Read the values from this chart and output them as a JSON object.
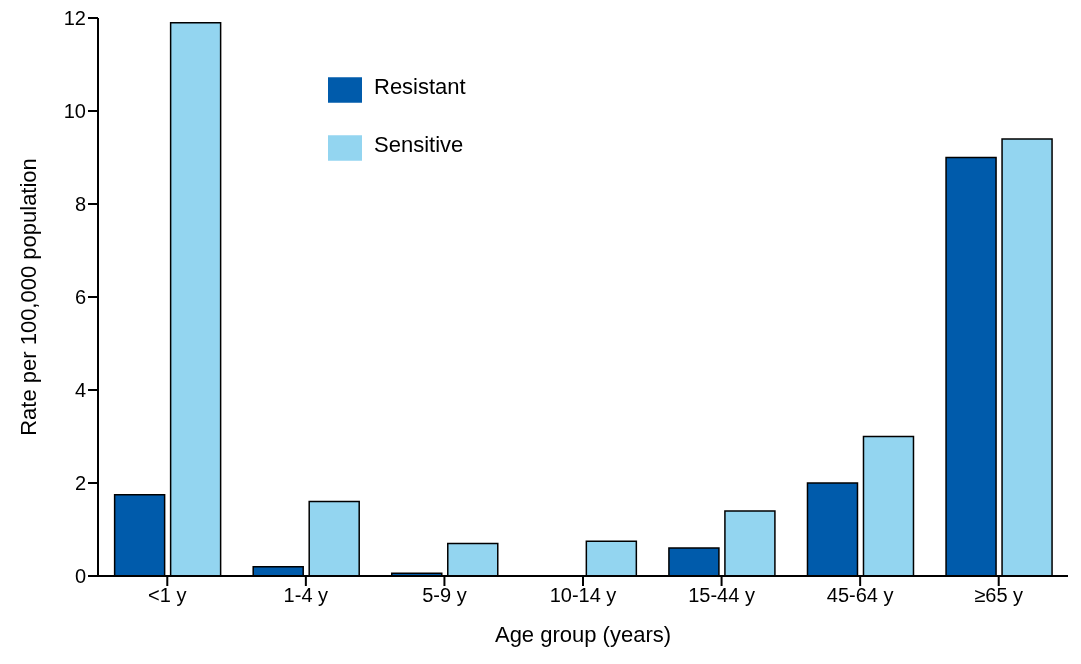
{
  "chart_data": {
    "type": "bar",
    "xlabel": "Age group (years)",
    "ylabel": "Rate per 100,000 population",
    "categories": [
      "<1 y",
      "1-4 y",
      "5-9 y",
      "10-14 y",
      "15-44 y",
      "45-64 y",
      "≥65 y"
    ],
    "series": [
      {
        "name": "Resistant",
        "color": "#005bab",
        "values": [
          1.75,
          0.2,
          0.06,
          null,
          0.6,
          2.0,
          9.0
        ]
      },
      {
        "name": "Sensitive",
        "color": "#93d5f0",
        "values": [
          11.9,
          1.6,
          0.7,
          0.75,
          1.4,
          3.0,
          9.4
        ]
      }
    ],
    "ylim": [
      0,
      12
    ],
    "yticks": [
      0,
      2,
      4,
      6,
      8,
      10,
      12
    ],
    "grid": false,
    "legend": "top"
  }
}
